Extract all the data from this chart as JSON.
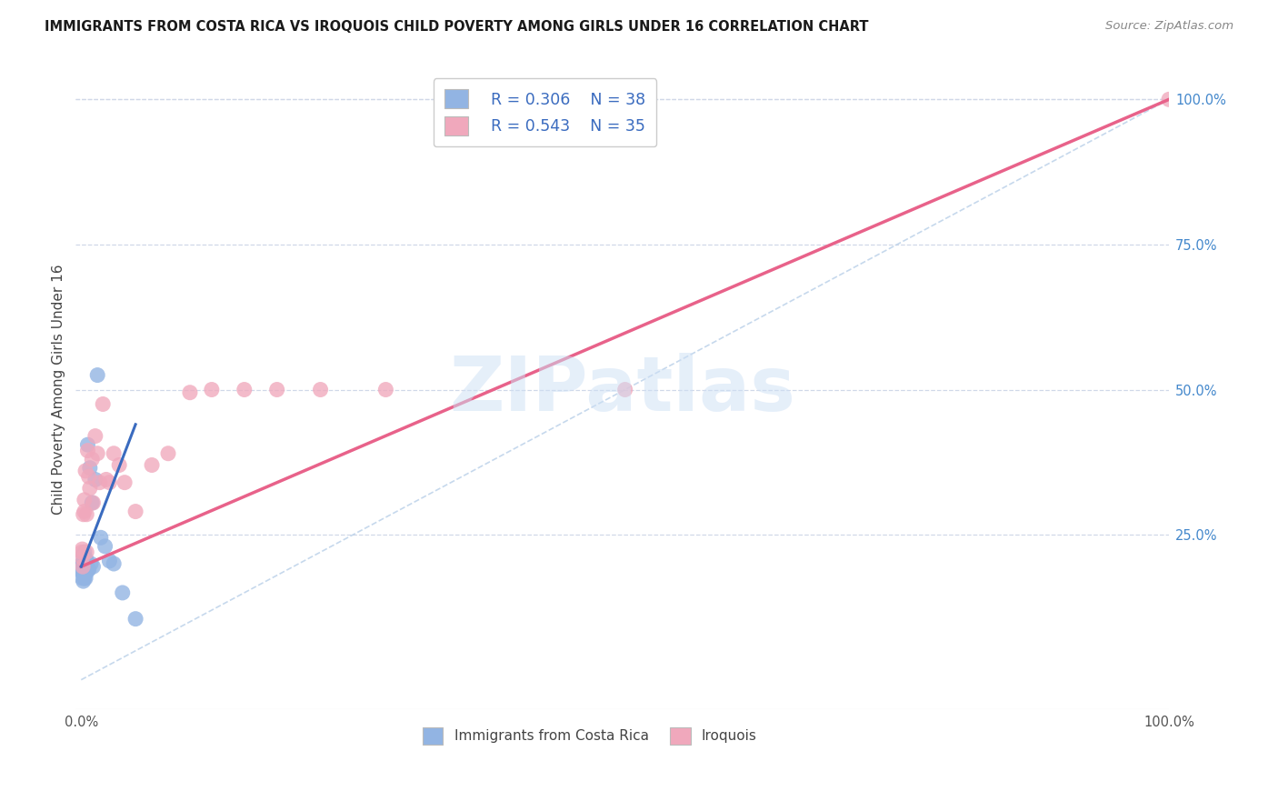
{
  "title": "IMMIGRANTS FROM COSTA RICA VS IROQUOIS CHILD POVERTY AMONG GIRLS UNDER 16 CORRELATION CHART",
  "source": "Source: ZipAtlas.com",
  "ylabel": "Child Poverty Among Girls Under 16",
  "xlim": [
    -0.005,
    1.0
  ],
  "ylim": [
    -0.05,
    1.05
  ],
  "xtick_vals": [
    0.0,
    1.0
  ],
  "xtick_labels": [
    "0.0%",
    "100.0%"
  ],
  "ytick_positions_right": [
    1.0,
    0.75,
    0.5,
    0.25
  ],
  "ytick_labels_right": [
    "100.0%",
    "75.0%",
    "50.0%",
    "25.0%"
  ],
  "legend_r1": "R = 0.306",
  "legend_n1": "N = 38",
  "legend_r2": "R = 0.543",
  "legend_n2": "N = 35",
  "color_blue": "#92b4e3",
  "color_pink": "#f0a8bc",
  "color_line_blue": "#3a6bbf",
  "color_line_pink": "#e8628a",
  "color_diag": "#b8cfe8",
  "watermark": "ZIPatlas",
  "background_color": "#ffffff",
  "grid_color": "#d0d8e8",
  "blue_x": [
    0.0005,
    0.0008,
    0.001,
    0.001,
    0.001,
    0.0015,
    0.002,
    0.002,
    0.002,
    0.002,
    0.002,
    0.0025,
    0.003,
    0.003,
    0.003,
    0.003,
    0.0035,
    0.004,
    0.004,
    0.004,
    0.004,
    0.005,
    0.005,
    0.006,
    0.006,
    0.007,
    0.008,
    0.009,
    0.01,
    0.011,
    0.013,
    0.015,
    0.018,
    0.022,
    0.026,
    0.03,
    0.038,
    0.05
  ],
  "blue_y": [
    0.195,
    0.19,
    0.2,
    0.185,
    0.175,
    0.185,
    0.215,
    0.205,
    0.195,
    0.185,
    0.17,
    0.21,
    0.22,
    0.205,
    0.195,
    0.175,
    0.2,
    0.21,
    0.2,
    0.185,
    0.175,
    0.205,
    0.185,
    0.405,
    0.19,
    0.19,
    0.365,
    0.2,
    0.305,
    0.195,
    0.345,
    0.525,
    0.245,
    0.23,
    0.205,
    0.2,
    0.15,
    0.105
  ],
  "pink_x": [
    0.0005,
    0.001,
    0.001,
    0.0015,
    0.002,
    0.003,
    0.003,
    0.004,
    0.005,
    0.005,
    0.006,
    0.007,
    0.008,
    0.01,
    0.011,
    0.013,
    0.015,
    0.017,
    0.02,
    0.023,
    0.026,
    0.03,
    0.035,
    0.04,
    0.05,
    0.065,
    0.08,
    0.1,
    0.12,
    0.15,
    0.18,
    0.22,
    0.28,
    0.5,
    1.0
  ],
  "pink_y": [
    0.22,
    0.225,
    0.21,
    0.195,
    0.285,
    0.31,
    0.29,
    0.36,
    0.285,
    0.22,
    0.395,
    0.35,
    0.33,
    0.38,
    0.305,
    0.42,
    0.39,
    0.34,
    0.475,
    0.345,
    0.34,
    0.39,
    0.37,
    0.34,
    0.29,
    0.37,
    0.39,
    0.495,
    0.5,
    0.5,
    0.5,
    0.5,
    0.5,
    0.5,
    1.0
  ],
  "pink_line_x0": 0.0,
  "pink_line_y0": 0.195,
  "pink_line_x1": 1.0,
  "pink_line_y1": 1.0,
  "blue_line_x0": 0.0,
  "blue_line_y0": 0.195,
  "blue_line_x1": 0.05,
  "blue_line_y1": 0.44
}
